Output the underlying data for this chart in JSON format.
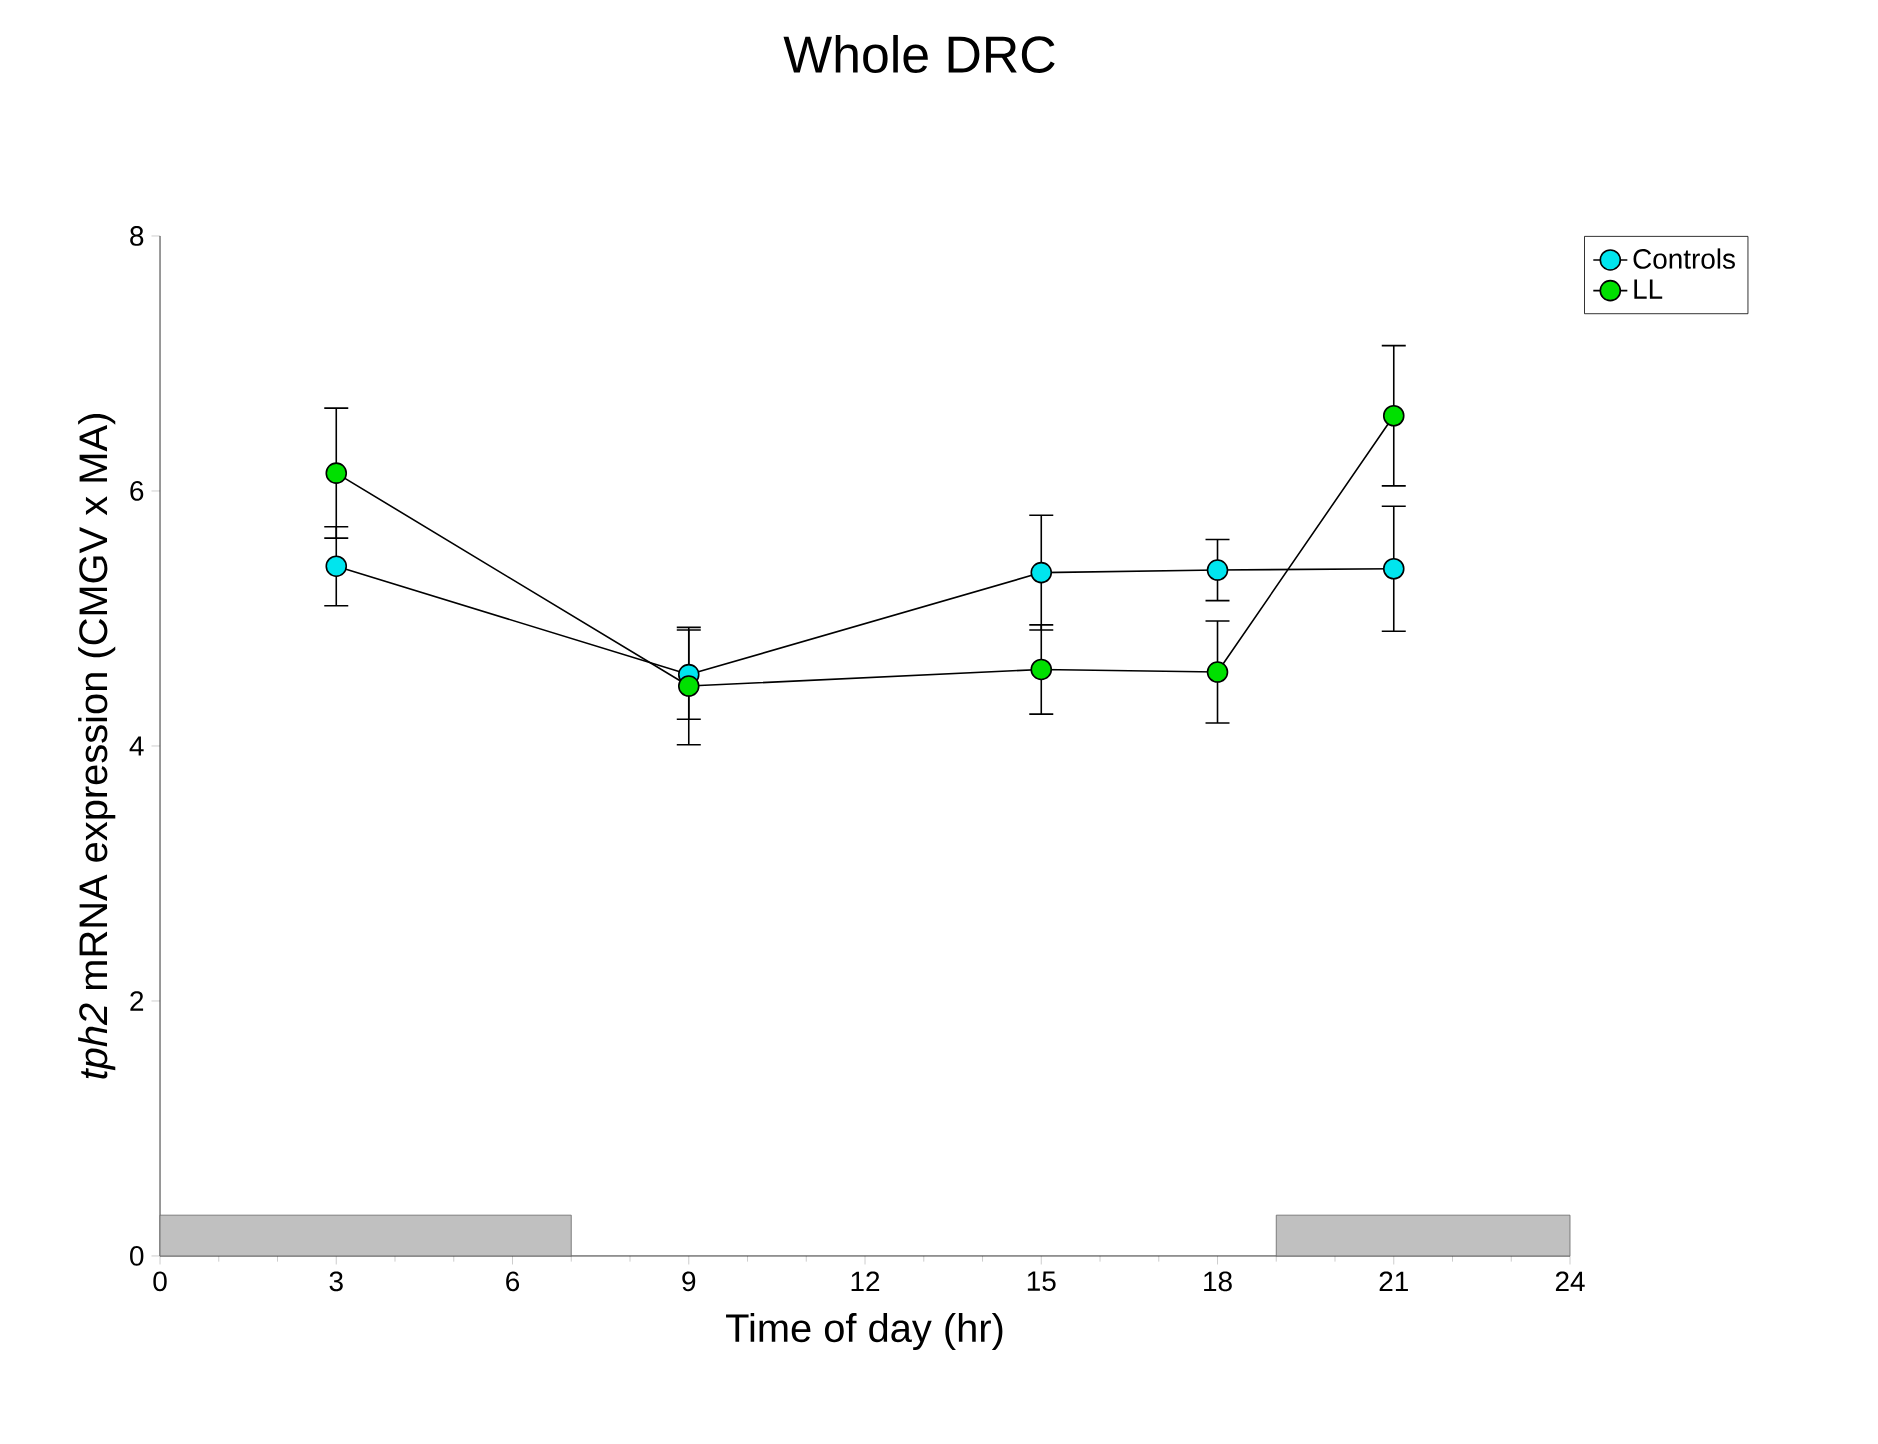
{
  "chart_data": {
    "type": "line",
    "title": "Whole DRC",
    "xlabel": "Time of day (hr)",
    "ylabel": "*tph2* mRNA expression (CMGV x MA)",
    "x": [
      3,
      9,
      15,
      18,
      21
    ],
    "series": [
      {
        "name": "Controls",
        "color": "#00e5ee",
        "values": [
          5.41,
          4.56,
          5.36,
          5.38,
          5.39
        ],
        "errors": [
          0.31,
          0.35,
          0.45,
          0.24,
          0.49
        ]
      },
      {
        "name": "LL",
        "color": "#00e000",
        "values": [
          6.14,
          4.47,
          4.6,
          4.58,
          6.59
        ],
        "errors": [
          0.51,
          0.46,
          0.35,
          0.4,
          0.55
        ]
      }
    ],
    "xlim": [
      0,
      24
    ],
    "xticks": [
      0,
      3,
      6,
      9,
      12,
      15,
      18,
      21,
      24
    ],
    "ylim": [
      0,
      8
    ],
    "yticks": [
      0,
      2,
      4,
      6,
      8
    ],
    "bands": [
      {
        "axis": "x",
        "from": 0,
        "to": 7,
        "color": "#c0c0c0"
      },
      {
        "axis": "x",
        "from": 19,
        "to": 24,
        "color": "#c0c0c0"
      }
    ],
    "marker": "circle",
    "line_style": "solid",
    "grid": false,
    "legend": "top right"
  }
}
